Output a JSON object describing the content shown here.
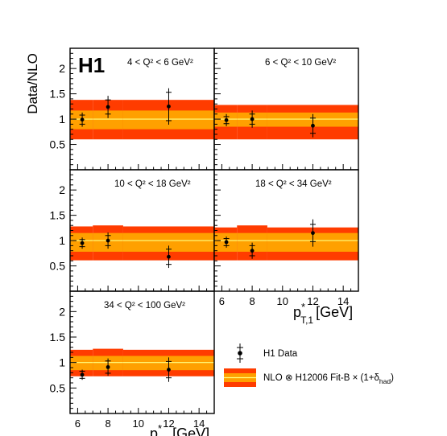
{
  "experiment_logo": "H1",
  "chart_data": {
    "type": "scatter",
    "ylabel": "Data/NLO",
    "xlabel_main": "p",
    "xlabel_super": "*",
    "xlabel_sub": "T,1",
    "xlabel_unit": "[GeV]",
    "xlim": [
      5.5,
      15
    ],
    "ylim": [
      0,
      2.4
    ],
    "x_ticks": [
      6,
      8,
      10,
      12,
      14
    ],
    "y_ticks": [
      0.5,
      1,
      1.5,
      2
    ],
    "x_tick_labels": [
      "6",
      "8",
      "10",
      "12",
      "14"
    ],
    "y_tick_labels": [
      "0.5",
      "1",
      "1.5",
      "2"
    ],
    "bins": [
      [
        5.5,
        7
      ],
      [
        7,
        9
      ],
      [
        9,
        15
      ]
    ],
    "band_colors": {
      "outer": "#ff3c00",
      "inner": "#ffa000",
      "line": "#ffff80"
    },
    "panels": [
      {
        "label": "4 < Q² < 6 GeV²",
        "x": [
          6.3,
          8.0,
          12.0
        ],
        "y": [
          0.99,
          1.24,
          1.25
        ],
        "stat_err": [
          0.09,
          0.14,
          0.28
        ],
        "tot_err": [
          0.14,
          0.22,
          0.36
        ],
        "band_outer": [
          [
            0.6,
            1.38
          ],
          [
            0.6,
            1.38
          ],
          [
            0.6,
            1.38
          ]
        ],
        "band_inner": [
          [
            0.8,
            1.17
          ],
          [
            0.8,
            1.17
          ],
          [
            0.8,
            1.17
          ]
        ]
      },
      {
        "label": "6 < Q² < 10 GeV²",
        "x": [
          6.3,
          8.0,
          12.0
        ],
        "y": [
          0.98,
          1.0,
          0.87
        ],
        "stat_err": [
          0.07,
          0.1,
          0.15
        ],
        "tot_err": [
          0.12,
          0.17,
          0.23
        ],
        "band_outer": [
          [
            0.6,
            1.28
          ],
          [
            0.6,
            1.28
          ],
          [
            0.6,
            1.28
          ]
        ],
        "band_inner": [
          [
            0.85,
            1.13
          ],
          [
            0.85,
            1.13
          ],
          [
            0.85,
            1.13
          ]
        ]
      },
      {
        "label": "10 < Q² < 18 GeV²",
        "x": [
          6.3,
          8.0,
          12.0
        ],
        "y": [
          0.95,
          1.0,
          0.68
        ],
        "stat_err": [
          0.07,
          0.1,
          0.15
        ],
        "tot_err": [
          0.11,
          0.16,
          0.22
        ],
        "band_outer": [
          [
            0.61,
            1.28
          ],
          [
            0.61,
            1.3
          ],
          [
            0.61,
            1.28
          ]
        ],
        "band_inner": [
          [
            0.78,
            1.15
          ],
          [
            0.78,
            1.15
          ],
          [
            0.78,
            1.15
          ]
        ]
      },
      {
        "label": "18 < Q² < 34 GeV²",
        "x": [
          6.3,
          8.0,
          12.0
        ],
        "y": [
          0.97,
          0.8,
          1.15
        ],
        "stat_err": [
          0.07,
          0.1,
          0.17
        ],
        "tot_err": [
          0.11,
          0.16,
          0.27
        ],
        "band_outer": [
          [
            0.61,
            1.26
          ],
          [
            0.61,
            1.3
          ],
          [
            0.61,
            1.26
          ]
        ],
        "band_inner": [
          [
            0.78,
            1.15
          ],
          [
            0.78,
            1.15
          ],
          [
            0.78,
            1.15
          ]
        ]
      },
      {
        "label": "34 < Q² < 100 GeV²",
        "x": [
          6.3,
          8.0,
          12.0
        ],
        "y": [
          0.76,
          0.91,
          0.86
        ],
        "stat_err": [
          0.07,
          0.12,
          0.16
        ],
        "tot_err": [
          0.1,
          0.17,
          0.24
        ],
        "band_outer": [
          [
            0.73,
            1.25
          ],
          [
            0.73,
            1.27
          ],
          [
            0.73,
            1.25
          ]
        ],
        "band_inner": [
          [
            0.85,
            1.13
          ],
          [
            0.85,
            1.13
          ],
          [
            0.85,
            1.13
          ]
        ]
      }
    ],
    "legend": {
      "placement": "bottom-right",
      "data_label": "H1 Data",
      "band_label_main": "NLO ⊗ H12006 Fit-B × (1+δ",
      "band_label_sub": "had",
      "band_label_close": ")"
    }
  }
}
